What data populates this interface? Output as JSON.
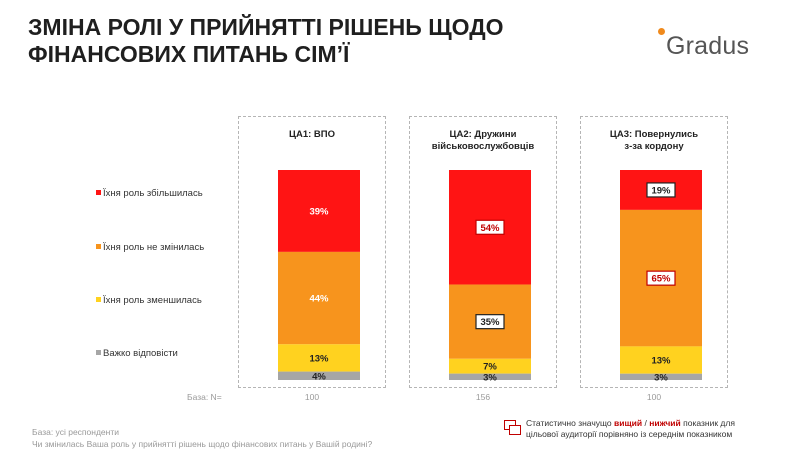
{
  "title_line1": "ЗМІНА РОЛІ У ПРИЙНЯТТІ РІШЕНЬ ЩОДО",
  "title_line2": "ФІНАНСОВИХ ПИТАНЬ СІМ’Ї",
  "logo_text": "Gradus",
  "colors": {
    "increased": "#ff1414",
    "unchanged": "#f7941d",
    "decreased": "#ffd21f",
    "hard": "#a6a6a6",
    "sig_border": "#c00000"
  },
  "chart_data": {
    "type": "bar",
    "stacked": true,
    "percent": true,
    "categories": [
      "ЦА1: ВПО",
      "ЦА2: Дружини військовослужбовців",
      "ЦА3: Повернулись з-за кордону"
    ],
    "category_lines": [
      [
        "ЦА1: ВПО"
      ],
      [
        "ЦА2: Дружини",
        "військовослужбовців"
      ],
      [
        "ЦА3: Повернулись",
        "з-за кордону"
      ]
    ],
    "series": [
      {
        "name": "Їхня роль збільшилась",
        "color": "#ff1414",
        "values": [
          39,
          54,
          19
        ]
      },
      {
        "name": "Їхня роль не змінилась",
        "color": "#f7941d",
        "values": [
          44,
          35,
          65
        ]
      },
      {
        "name": "Їхня роль зменшилась",
        "color": "#ffd21f",
        "values": [
          13,
          7,
          13
        ]
      },
      {
        "name": "Важко відповісти",
        "color": "#a6a6a6",
        "values": [
          4,
          3,
          3
        ]
      }
    ],
    "data_labels": [
      [
        "39%",
        "44%",
        "13%",
        "4%"
      ],
      [
        "54%",
        "35%",
        "7%",
        "3%"
      ],
      [
        "19%",
        "65%",
        "13%",
        "3%"
      ]
    ],
    "highlight": [
      [
        null,
        null,
        null,
        null
      ],
      [
        "higher",
        "lower",
        null,
        null
      ],
      [
        "lower",
        "higher",
        null,
        null
      ]
    ],
    "base_label": "База: N=",
    "base_values": [
      "100",
      "156",
      "100"
    ],
    "ylim": [
      0,
      100
    ]
  },
  "footnote_base": "База: усі респонденти",
  "footnote_question": "Чи змінилась Ваша роль у прийнятті рішень щодо фінансових питань у Вашій родині?",
  "sig_prefix": "Статистично значущо ",
  "sig_higher": "вищий",
  "sig_sep": " / ",
  "sig_lower": "нижчий",
  "sig_suffix": " показник для",
  "sig_line2": "цільової аудиторії порівняно із середнім показником"
}
